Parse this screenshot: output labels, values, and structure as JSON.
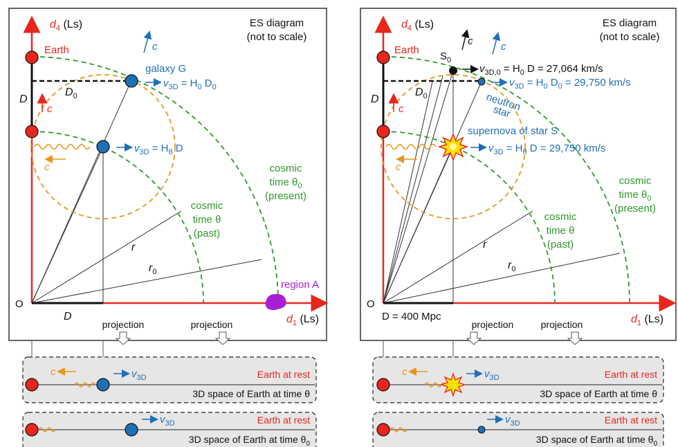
{
  "colors": {
    "earth": "#e8261e",
    "galaxy": "#1f6fb5",
    "cosmic_time": "#2f9a2a",
    "light": "#e8961e",
    "region": "#a81fd6",
    "panel_bg": "#e6e6e6"
  },
  "icons": [
    "earth-dot",
    "galaxy-dot",
    "wave-icon",
    "arrow-icon",
    "supernova-star-icon",
    "projection-arrow-icon",
    "region-blob"
  ],
  "left": {
    "title_line1": "ES diagram",
    "title_line2": "(not to scale)",
    "axis_y": "d",
    "axis_y_sub": "4",
    "axis_y_unit": " (Ls)",
    "axis_x": "d",
    "axis_x_sub": "1",
    "axis_x_unit": " (Ls)",
    "origin": "O",
    "earth": "Earth",
    "galaxy": "galaxy G",
    "D_label": "D",
    "D0_label": "D",
    "D0_sub": "0",
    "D_bottom": "D",
    "c": "c",
    "v3d_eq1": "v",
    "v3d_sub": "3D",
    "eq_top": " = H",
    "eq_top_sub": "0",
    "eq_top_rest": " D",
    "eq_top_rest_sub": "0",
    "eq_mid": " = H",
    "eq_mid_sub": "θ",
    "eq_mid_rest": " D",
    "cosmic": "cosmic",
    "time_theta0": "time θ",
    "time_theta0_sub": "0",
    "present": "(present)",
    "time_theta": "time θ",
    "past": "(past)",
    "r": "r",
    "r0": "r",
    "r0_sub": "0",
    "region": "region A",
    "projection": "projection",
    "panel1_c": "c",
    "panel1_rest": "Earth at rest",
    "panel1_space": "3D space of Earth at time θ",
    "panel2_rest": "Earth at rest",
    "panel2_space": "3D space of Earth at time θ",
    "panel2_space_sub": "0"
  },
  "right": {
    "title_line1": "ES diagram",
    "title_line2": "(not to scale)",
    "axis_y": "d",
    "axis_y_sub": "4",
    "axis_y_unit": " (Ls)",
    "axis_x": "d",
    "axis_x_sub": "1",
    "axis_x_unit": " (Ls)",
    "origin": "O",
    "earth": "Earth",
    "S0": "S",
    "S0_sub": "0",
    "eq_s0_v": "v",
    "eq_s0_sub": "3D,0",
    "eq_s0_rest": " = H",
    "eq_s0_h": "0",
    "eq_s0_end": " D = 27,064 km/s",
    "eq_ns_rest": " = H",
    "eq_ns_h": "0",
    "eq_ns_d": " D",
    "eq_ns_dsub": "0",
    "eq_ns_end": " = 29,750 km/s",
    "neutron": "neutron",
    "star": "star",
    "supernova": "supernova of star S",
    "eq_sn_rest": " = H",
    "eq_sn_h": "θ",
    "eq_sn_end": " D = 29,750 km/s",
    "D_label": "D",
    "D0_label": "D",
    "D0_sub": "0",
    "c": "c",
    "cosmic": "cosmic",
    "time_theta0": "time θ",
    "time_theta0_sub": "0",
    "present": "(present)",
    "time_theta": "time θ",
    "past": "(past)",
    "r": "r",
    "r0": "r",
    "r0_sub": "0",
    "D_bottom": "D = 400 Mpc",
    "projection": "projection",
    "panel1_c": "c",
    "panel1_rest": "Earth at rest",
    "panel1_space": "3D space of Earth at time θ",
    "panel2_rest": "Earth at rest",
    "panel2_space": "3D space of Earth at time θ",
    "panel2_space_sub": "0"
  }
}
